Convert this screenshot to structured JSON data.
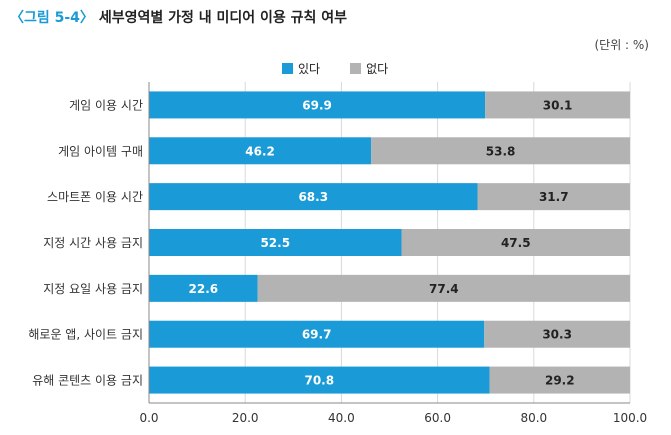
{
  "title": {
    "figure_no": "〈그림 5-4〉",
    "text": "세부영역별 가정 내 미디어 이용 규칙 여부"
  },
  "unit_label": "(단위 : %)",
  "colors": {
    "yes": "#1a9ad6",
    "no": "#b3b3b3"
  },
  "chart_data": {
    "type": "bar",
    "orientation": "horizontal",
    "stacked": true,
    "title": "세부영역별 가정 내 미디어 이용 규칙 여부",
    "unit": "%",
    "categories": [
      "게임 이용 시간",
      "게임 아이템 구매",
      "스마트폰 이용 시간",
      "지정 시간 사용 금지",
      "지정 요일 사용 금지",
      "해로운 앱, 사이트 금지",
      "유해  콘텐츠 이용 금지"
    ],
    "series": [
      {
        "name": "있다",
        "values": [
          69.9,
          46.2,
          68.3,
          52.5,
          22.6,
          69.7,
          70.8
        ]
      },
      {
        "name": "없다",
        "values": [
          30.1,
          53.8,
          31.7,
          47.5,
          77.4,
          30.3,
          29.2
        ]
      }
    ],
    "xlim": [
      0,
      100
    ],
    "xticks": [
      0,
      20,
      40,
      60,
      80,
      100
    ],
    "xtick_labels": [
      "0.0",
      "20.0",
      "40.0",
      "60.0",
      "80.0",
      "100.0"
    ],
    "grid": true,
    "legend": "top-center"
  }
}
